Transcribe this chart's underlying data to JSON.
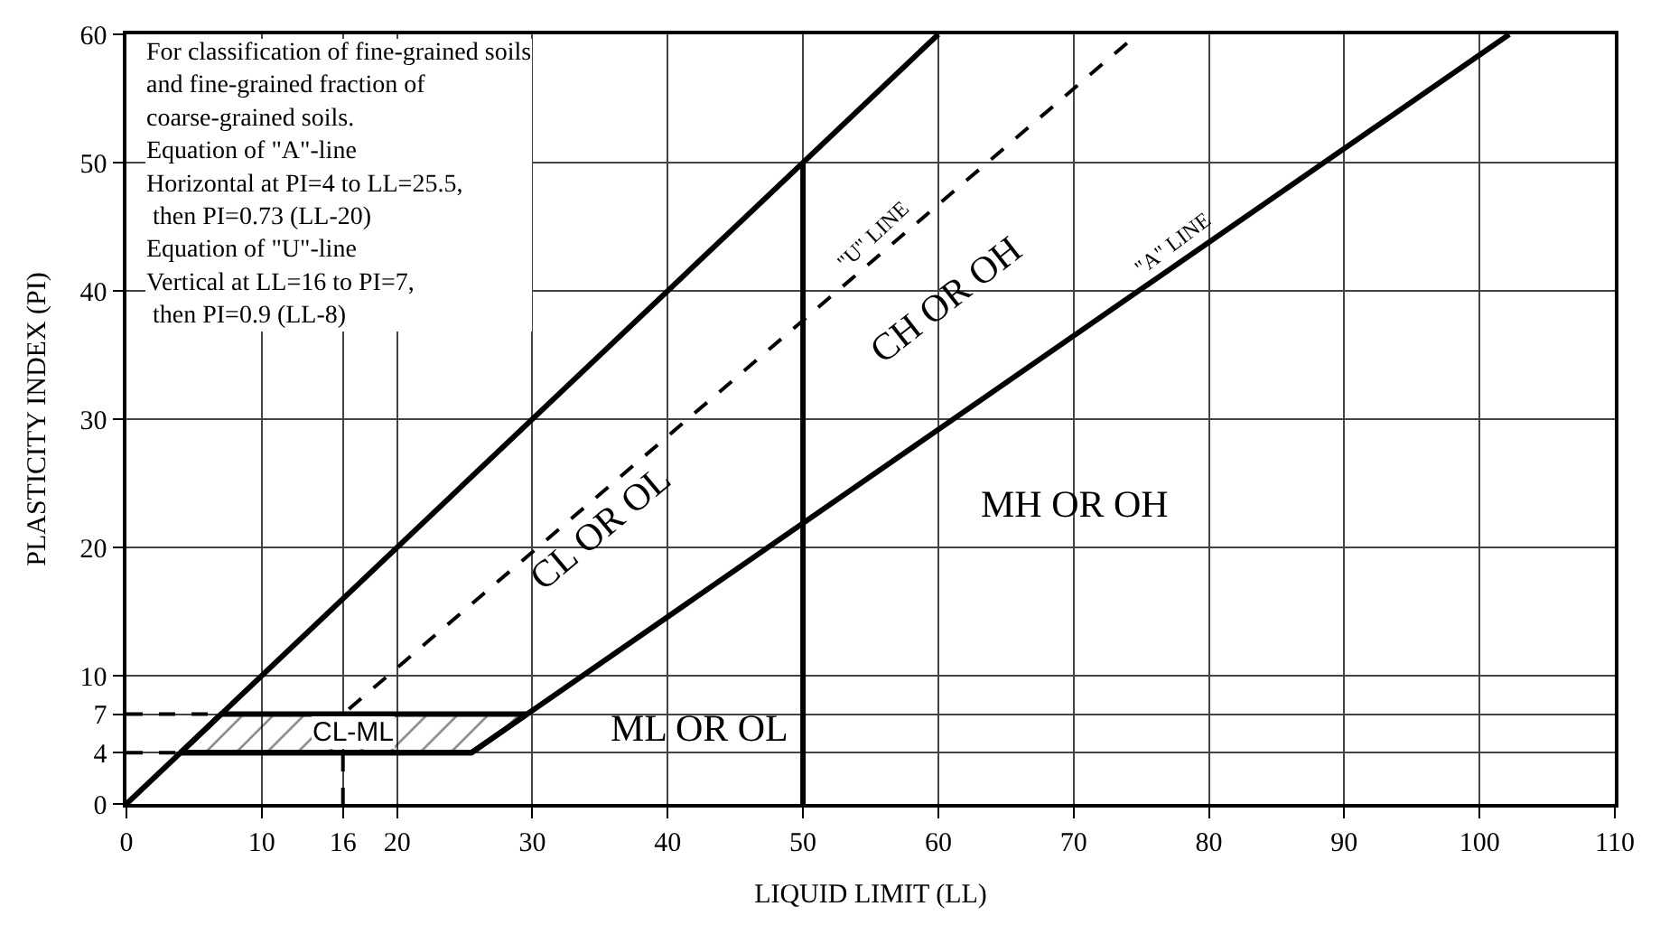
{
  "chart_data": {
    "type": "line",
    "xlabel": "LIQUID LIMIT (LL)",
    "ylabel": "PLASTICITY INDEX (PI)",
    "xlim": [
      0,
      110
    ],
    "xticks": [
      0,
      10,
      16,
      20,
      30,
      40,
      50,
      60,
      70,
      80,
      90,
      100,
      110
    ],
    "ylim": [
      0,
      60
    ],
    "yticks": [
      0,
      4,
      7,
      10,
      20,
      30,
      40,
      50,
      60
    ],
    "grid": true,
    "legend": false,
    "marker": "none",
    "series": [
      {
        "color": "#000000",
        "line_style": "solid",
        "x": [
          0,
          60
        ],
        "values": [
          0,
          60
        ]
      },
      {
        "color": "#000000",
        "line_style": "solid",
        "x": [
          4,
          25.5,
          102.2
        ],
        "values": [
          4,
          4,
          60
        ]
      },
      {
        "color": "#000000",
        "line_style": "dashed",
        "x": [
          16,
          16,
          74.7
        ],
        "values": [
          0,
          7,
          60
        ]
      },
      {
        "color": "#000000",
        "line_style": "solid",
        "x": [
          50,
          50
        ],
        "values": [
          0,
          50
        ]
      },
      {
        "color": "#000000",
        "line_style": "dashed",
        "x": [
          0,
          7
        ],
        "values": [
          7,
          7
        ]
      },
      {
        "color": "#000000",
        "line_style": "dashed",
        "x": [
          0,
          4
        ],
        "values": [
          4,
          4
        ]
      },
      {
        "type": "area",
        "color": "#000000",
        "line_style": "solid",
        "x": [
          4,
          25.5,
          29.6,
          7,
          4
        ],
        "values": [
          4,
          4,
          7,
          7,
          4
        ]
      }
    ],
    "annotations": [
      "For classification of fine-grained soils\nand fine-grained fraction of\ncoarse-grained soils.\nEquation of \"A\"-line\nHorizontal at PI=4 to LL=25.5,\n then PI=0.73 (LL-20)\nEquation of \"U\"-line\nVertical at LL=16 to PI=7,\n then PI=0.9 (LL-8)",
      "CL-ML",
      "ML OR OL",
      "CL OR OL",
      "CH OR OH",
      "MH OR OH",
      {
        "text": "\"U\" LINE",
        "x": 55.2,
        "y": 42.5
      },
      {
        "text": "\"A\" LINE",
        "x": 77.3,
        "y": 41.8
      }
    ]
  }
}
